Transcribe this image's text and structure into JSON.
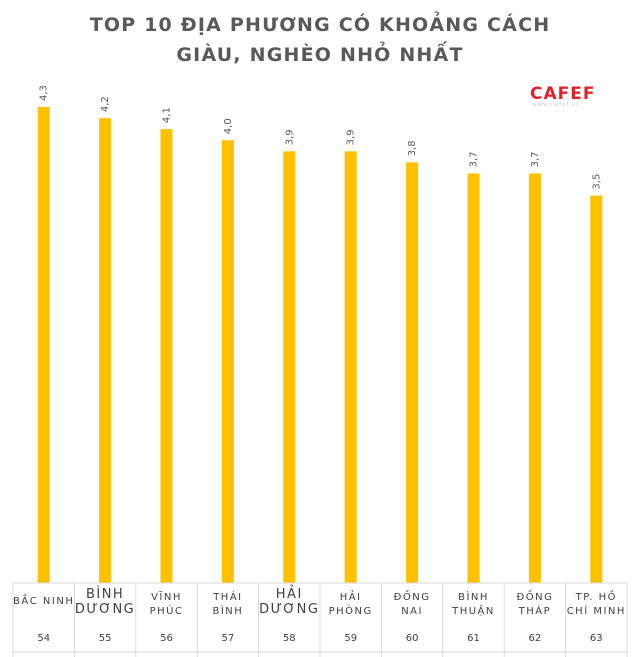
{
  "title_lines": [
    "TOP 10 ĐỊA PHƯƠNG CÓ KHOẢNG CÁCH",
    "GIÀU, NGHÈO NHỎ NHẤT"
  ],
  "logo": {
    "text": "CAFEF",
    "url": "www.cafef.vn"
  },
  "colors": {
    "bar": "#FFC000",
    "title": "#595959",
    "grid": "#d9d9d9"
  },
  "chart_data": {
    "type": "bar",
    "title": "TOP 10 ĐỊA PHƯƠNG CÓ KHOẢNG CÁCH GIÀU, NGHÈO NHỎ NHẤT",
    "categories": [
      {
        "lines": [
          "BẮC NINH"
        ],
        "rank": "54"
      },
      {
        "lines": [
          "BÌNH",
          "DƯƠNG"
        ],
        "rank": "55",
        "large": true
      },
      {
        "lines": [
          "VĨNH",
          "PHÚC"
        ],
        "rank": "56"
      },
      {
        "lines": [
          "THÁI",
          "BÌNH"
        ],
        "rank": "57"
      },
      {
        "lines": [
          "HẢI",
          "DƯƠNG"
        ],
        "rank": "58",
        "large": true
      },
      {
        "lines": [
          "HẢI",
          "PHÒNG"
        ],
        "rank": "59"
      },
      {
        "lines": [
          "ĐỒNG",
          "NAI"
        ],
        "rank": "60"
      },
      {
        "lines": [
          "BÌNH",
          "THUẬN"
        ],
        "rank": "61"
      },
      {
        "lines": [
          "ĐỒNG",
          "THÁP"
        ],
        "rank": "62"
      },
      {
        "lines": [
          "TP. HỒ",
          "CHÍ MINH"
        ],
        "rank": "63"
      }
    ],
    "values": [
      4.3,
      4.2,
      4.1,
      4.0,
      3.9,
      3.9,
      3.8,
      3.7,
      3.7,
      3.5
    ],
    "value_labels": [
      "4,3",
      "4,2",
      "4,1",
      "4,0",
      "3,9",
      "3,9",
      "3,8",
      "3,7",
      "3,7",
      "3,5"
    ],
    "xlabel": "",
    "ylabel": "",
    "grid": false,
    "legend": "none"
  }
}
